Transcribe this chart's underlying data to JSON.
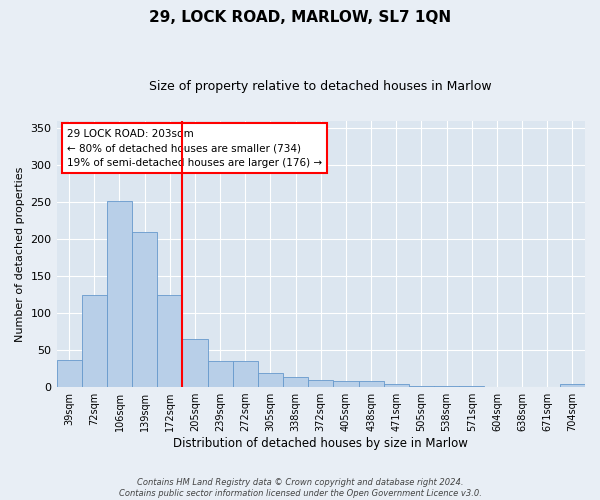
{
  "title": "29, LOCK ROAD, MARLOW, SL7 1QN",
  "subtitle": "Size of property relative to detached houses in Marlow",
  "xlabel": "Distribution of detached houses by size in Marlow",
  "ylabel": "Number of detached properties",
  "categories": [
    "39sqm",
    "72sqm",
    "106sqm",
    "139sqm",
    "172sqm",
    "205sqm",
    "239sqm",
    "272sqm",
    "305sqm",
    "338sqm",
    "372sqm",
    "405sqm",
    "438sqm",
    "471sqm",
    "505sqm",
    "538sqm",
    "571sqm",
    "604sqm",
    "638sqm",
    "671sqm",
    "704sqm"
  ],
  "values": [
    37,
    124,
    252,
    210,
    125,
    65,
    35,
    35,
    19,
    13,
    9,
    8,
    8,
    4,
    2,
    1,
    1,
    0,
    0,
    0,
    4
  ],
  "bar_color": "#b8cfe8",
  "bar_edge_color": "#6699cc",
  "vline_x": 4.5,
  "vline_color": "red",
  "ylim": [
    0,
    360
  ],
  "yticks": [
    0,
    50,
    100,
    150,
    200,
    250,
    300,
    350
  ],
  "annotation_line1": "29 LOCK ROAD: 203sqm",
  "annotation_line2": "← 80% of detached houses are smaller (734)",
  "annotation_line3": "19% of semi-detached houses are larger (176) →",
  "annotation_box_color": "white",
  "annotation_box_edge": "red",
  "footer_line1": "Contains HM Land Registry data © Crown copyright and database right 2024.",
  "footer_line2": "Contains public sector information licensed under the Open Government Licence v3.0.",
  "background_color": "#e8eef5",
  "plot_bg_color": "#dce6f0",
  "title_fontsize": 11,
  "subtitle_fontsize": 9
}
